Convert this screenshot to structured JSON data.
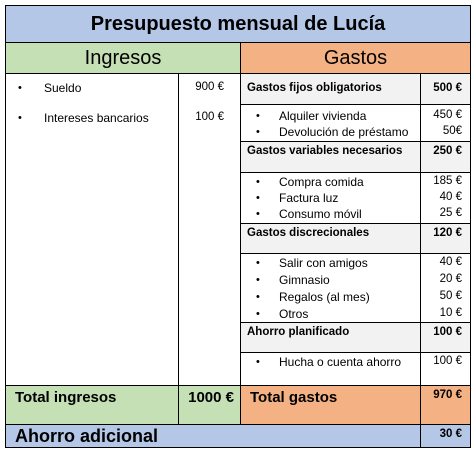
{
  "title": "Presupuesto mensual de Lucía",
  "income": {
    "header": "Ingresos",
    "items": [
      {
        "label": "Sueldo",
        "amount": "900 €"
      },
      {
        "label": "Intereses bancarios",
        "amount": "100 €"
      }
    ],
    "total_label": "Total ingresos",
    "total_amount": "1000 €"
  },
  "expenses": {
    "header": "Gastos",
    "groups": [
      {
        "name": "Gastos fijos obligatorios",
        "amount": "500 €",
        "items": [
          {
            "label": "Alquiler vivienda",
            "amount": "450 €"
          },
          {
            "label": "Devolución de préstamo",
            "amount": "50€"
          }
        ]
      },
      {
        "name": "Gastos variables necesarios",
        "amount": "250 €",
        "items": [
          {
            "label": "Compra comida",
            "amount": "185 €"
          },
          {
            "label": "Factura luz",
            "amount": "40 €"
          },
          {
            "label": "Consumo móvil",
            "amount": "25 €"
          }
        ]
      },
      {
        "name": "Gastos discrecionales",
        "amount": "120 €",
        "items": [
          {
            "label": "Salir con amigos",
            "amount": "40 €"
          },
          {
            "label": "Gimnasio",
            "amount": "20 €"
          },
          {
            "label": "Regalos (al mes)",
            "amount": "50 €"
          },
          {
            "label": "Otros",
            "amount": "10 €"
          }
        ]
      },
      {
        "name": "Ahorro planificado",
        "amount": "100 €",
        "items": [
          {
            "label": "Hucha o cuenta ahorro",
            "amount": "100 €"
          }
        ]
      }
    ],
    "total_label": "Total gastos",
    "total_amount": "970 €"
  },
  "extra_savings": {
    "label": "Ahorro adicional",
    "amount": "30 €"
  },
  "bullet_glyph": "•"
}
